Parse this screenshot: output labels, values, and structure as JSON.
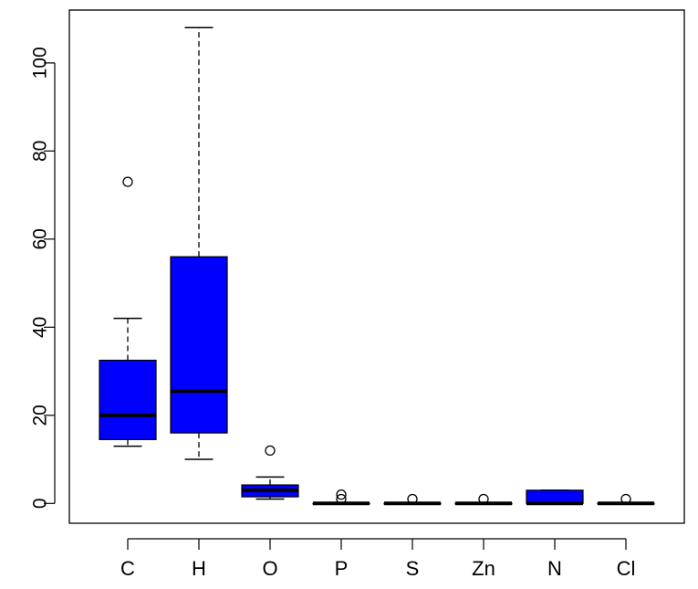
{
  "chart_data": {
    "type": "boxplot",
    "title": "",
    "xlabel": "",
    "ylabel": "",
    "ylim": [
      -4.5,
      112
    ],
    "yticks": [
      0,
      20,
      40,
      60,
      80,
      100
    ],
    "grid": false,
    "legend": null,
    "box_fill": "#0000ff",
    "categories": [
      "C",
      "H",
      "O",
      "P",
      "S",
      "Zn",
      "N",
      "Cl"
    ],
    "boxes": [
      {
        "label": "C",
        "lower_whisker": 13,
        "q1": 14.5,
        "median": 20,
        "q3": 32.5,
        "upper_whisker": 42,
        "outliers": [
          73
        ]
      },
      {
        "label": "H",
        "lower_whisker": 10,
        "q1": 16,
        "median": 25.5,
        "q3": 56,
        "upper_whisker": 108,
        "outliers": []
      },
      {
        "label": "O",
        "lower_whisker": 1,
        "q1": 1.5,
        "median": 3,
        "q3": 4.2,
        "upper_whisker": 6,
        "outliers": [
          12
        ]
      },
      {
        "label": "P",
        "lower_whisker": 0,
        "q1": 0,
        "median": 0,
        "q3": 0,
        "upper_whisker": 0,
        "outliers": [
          1,
          2
        ]
      },
      {
        "label": "S",
        "lower_whisker": 0,
        "q1": 0,
        "median": 0,
        "q3": 0,
        "upper_whisker": 0,
        "outliers": [
          1
        ]
      },
      {
        "label": "Zn",
        "lower_whisker": 0,
        "q1": 0,
        "median": 0,
        "q3": 0,
        "upper_whisker": 0,
        "outliers": [
          1
        ]
      },
      {
        "label": "N",
        "lower_whisker": 0,
        "q1": 0,
        "median": 0,
        "q3": 3,
        "upper_whisker": 3,
        "outliers": []
      },
      {
        "label": "Cl",
        "lower_whisker": 0,
        "q1": 0,
        "median": 0,
        "q3": 0,
        "upper_whisker": 0,
        "outliers": [
          1
        ]
      }
    ]
  }
}
